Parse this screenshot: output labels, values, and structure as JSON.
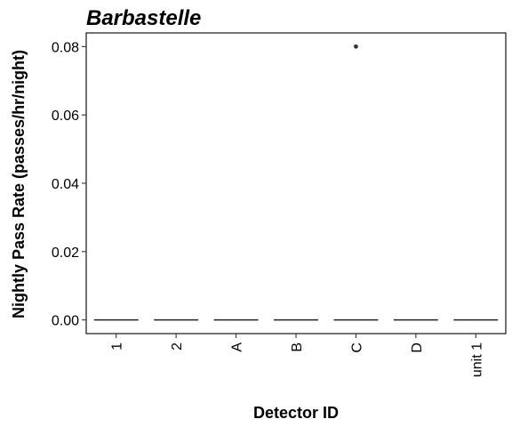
{
  "chart_data": {
    "type": "boxplot",
    "title": "Barbastelle",
    "xlabel": "Detector ID",
    "ylabel": "Nightly Pass Rate (passes/hr/night)",
    "categories": [
      "1",
      "2",
      "A",
      "B",
      "C",
      "D",
      "unit 1"
    ],
    "medians": [
      0,
      0,
      0,
      0,
      0,
      0,
      0
    ],
    "outliers": [
      {
        "category": "C",
        "value": 0.08
      }
    ],
    "ylim": [
      -0.004,
      0.084
    ],
    "yticks": [
      0.0,
      0.02,
      0.04,
      0.06,
      0.08
    ],
    "ytick_labels": [
      "0.00",
      "0.02",
      "0.04",
      "0.06",
      "0.08"
    ],
    "grid": false,
    "legend": "none"
  }
}
